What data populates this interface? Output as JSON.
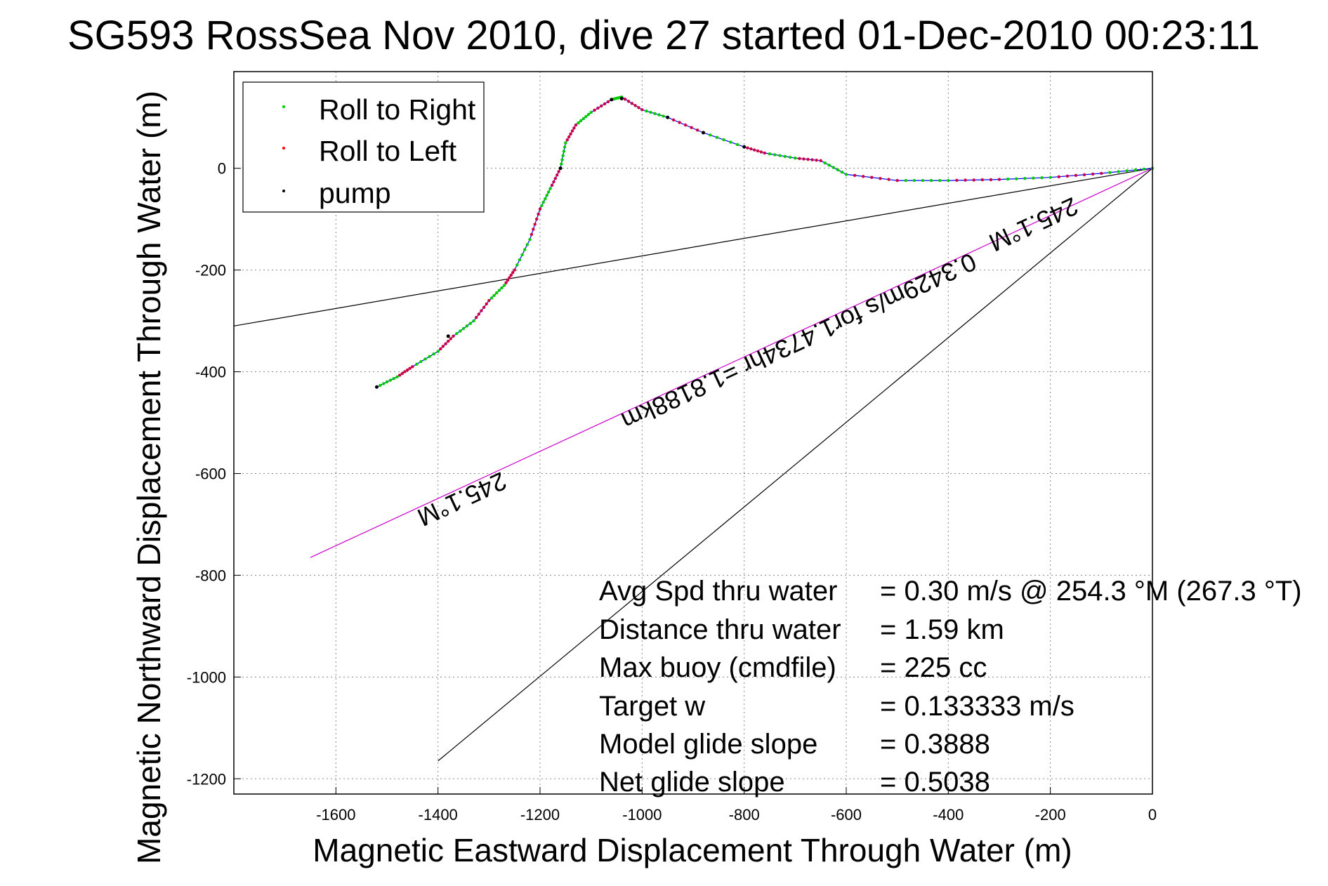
{
  "chart_data": {
    "type": "line",
    "title": "SG593 RossSea Nov 2010, dive 27 started 01-Dec-2010 00:23:11",
    "xlabel": "Magnetic Eastward Displacement Through Water (m)",
    "ylabel": "Magnetic Northward Displacement Through Water (m)",
    "xlim": [
      -1800,
      0
    ],
    "ylim": [
      -1230,
      190
    ],
    "grid": true,
    "legend_position": "top-left",
    "xticks": [
      -1600,
      -1400,
      -1200,
      -1000,
      -800,
      -600,
      -400,
      -200,
      0
    ],
    "yticks": [
      -1200,
      -1000,
      -800,
      -600,
      -400,
      -200,
      0
    ],
    "legend": [
      {
        "label": "Roll to Right",
        "color": "#00cc00"
      },
      {
        "label": "Roll to Left",
        "color": "#ff0000"
      },
      {
        "label": "pump",
        "color": "#000000"
      }
    ],
    "track": {
      "name": "glider track",
      "color": "#0000ff",
      "right_roll_color": "#00cc00",
      "left_roll_color": "#cc0044",
      "pump_color": "#000000",
      "points": [
        [
          0,
          0
        ],
        [
          -100,
          -10
        ],
        [
          -200,
          -18
        ],
        [
          -300,
          -22
        ],
        [
          -400,
          -24
        ],
        [
          -500,
          -24
        ],
        [
          -600,
          -12
        ],
        [
          -650,
          15
        ],
        [
          -700,
          20
        ],
        [
          -760,
          30
        ],
        [
          -800,
          42
        ],
        [
          -880,
          70
        ],
        [
          -950,
          100
        ],
        [
          -1000,
          115
        ],
        [
          -1040,
          140
        ],
        [
          -1060,
          135
        ],
        [
          -1100,
          110
        ],
        [
          -1130,
          85
        ],
        [
          -1150,
          50
        ],
        [
          -1160,
          0
        ],
        [
          -1180,
          -40
        ],
        [
          -1200,
          -80
        ],
        [
          -1220,
          -140
        ],
        [
          -1250,
          -200
        ],
        [
          -1270,
          -230
        ],
        [
          -1300,
          -260
        ],
        [
          -1330,
          -300
        ],
        [
          -1370,
          -330
        ],
        [
          -1400,
          -360
        ],
        [
          -1450,
          -390
        ],
        [
          -1480,
          -410
        ],
        [
          -1520,
          -430
        ]
      ],
      "pump_points": [
        [
          -1060,
          135
        ],
        [
          -1040,
          137
        ],
        [
          -1160,
          0
        ],
        [
          -1380,
          -330
        ],
        [
          -1520,
          -430
        ],
        [
          -800,
          42
        ],
        [
          -880,
          70
        ],
        [
          -950,
          100
        ]
      ]
    },
    "reference_lines": [
      {
        "name": "245.1°M heading line",
        "color": "#cc00cc",
        "x": [
          0,
          -1650
        ],
        "y": [
          0,
          -765
        ]
      },
      {
        "name": "reference line 1",
        "color": "#000000",
        "x": [
          0,
          -1800
        ],
        "y": [
          0,
          -310
        ]
      },
      {
        "name": "reference line 2",
        "color": "#000000",
        "x": [
          0,
          -1400
        ],
        "y": [
          0,
          -1165
        ]
      }
    ],
    "annotations": {
      "heading_far": "245.1°M",
      "heading_near": "245.1°M",
      "speed_note": "0.3429m/s for1.4734hr =1.8188km"
    },
    "stats": [
      {
        "label": "Avg Spd thru water",
        "value": "=  0.30 m/s @ 254.3 °M (267.3 °T)"
      },
      {
        "label": "Distance thru water",
        "value": "=  1.59 km"
      },
      {
        "label": "Max buoy (cmdfile)",
        "value": "= 225 cc"
      },
      {
        "label": "Target w",
        "value": "= 0.133333 m/s"
      },
      {
        "label": "Model glide slope",
        "value": "= 0.3888"
      },
      {
        "label": "Net glide slope",
        "value": "= 0.5038"
      }
    ]
  }
}
